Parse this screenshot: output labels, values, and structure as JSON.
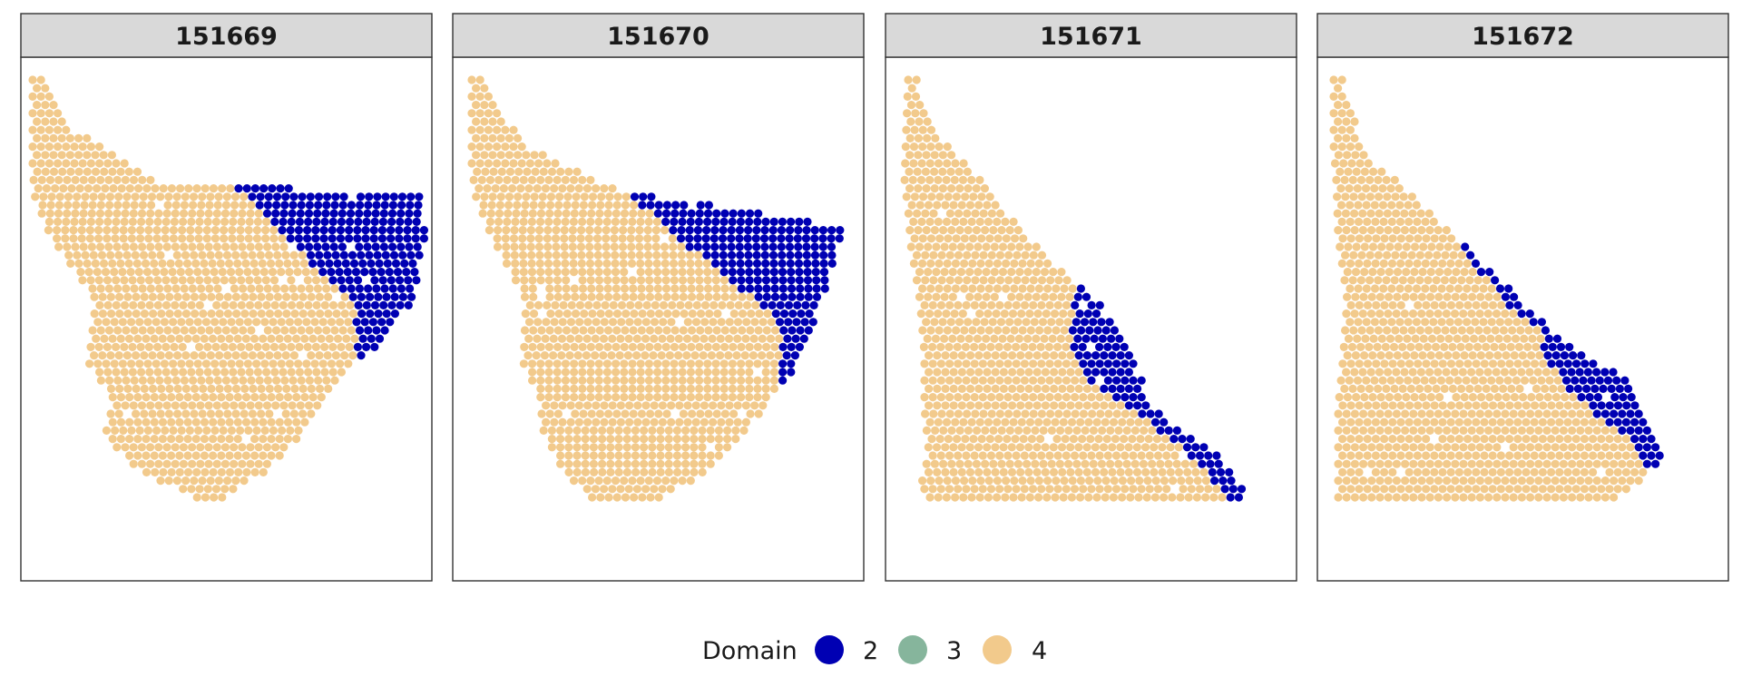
{
  "chart_data": {
    "type": "scatter",
    "panels": [
      "151669",
      "151670",
      "151671",
      "151672"
    ],
    "legend": {
      "title": "Domain",
      "position": "bottom",
      "entries": [
        {
          "label": "2",
          "color": "#0000b3"
        },
        {
          "label": "3",
          "color": "#86b59c"
        },
        {
          "label": "4",
          "color": "#f2ca8c"
        }
      ]
    },
    "grid": false,
    "axes_visible": false
  }
}
